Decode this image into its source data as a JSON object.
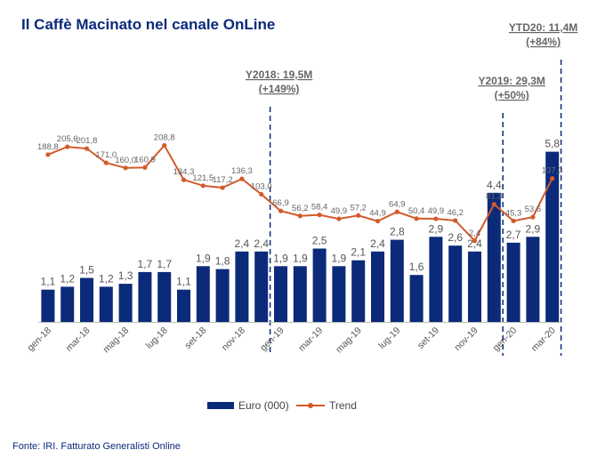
{
  "title": "Il Caffè Macinato nel canale OnLine",
  "source": "Fonte: IRI. Fatturato Generalisti Online",
  "colors": {
    "bars": "#0b2a7a",
    "trend": "#d35a2b",
    "title": "#0b2a7a",
    "annotation_line": "#0b2a7a"
  },
  "chart_data": {
    "type": "bar",
    "categories": [
      "gen-18",
      "feb-18",
      "mar-18",
      "apr-18",
      "mag-18",
      "giu-18",
      "lug-18",
      "ago-18",
      "set-18",
      "ott-18",
      "nov-18",
      "dic-18",
      "gen-19",
      "feb-19",
      "mar-19",
      "apr-19",
      "mag-19",
      "giu-19",
      "lug-19",
      "ago-19",
      "set-19",
      "ott-19",
      "nov-19",
      "dic-19",
      "gen-20",
      "feb-20",
      "mar-20"
    ],
    "x_tick_labels": [
      "gen-18",
      "mar-18",
      "mag-18",
      "lug-18",
      "set-18",
      "nov-18",
      "gen-19",
      "mar-19",
      "mag-19",
      "lug-19",
      "set-19",
      "nov-19",
      "gen-20",
      "mar-20"
    ],
    "series": [
      {
        "name": "Euro (000)",
        "type": "bar",
        "values": [
          1.1,
          1.2,
          1.5,
          1.2,
          1.3,
          1.7,
          1.7,
          1.1,
          1.9,
          1.8,
          2.4,
          2.4,
          1.9,
          1.9,
          2.5,
          1.9,
          2.1,
          2.4,
          2.8,
          1.6,
          2.9,
          2.6,
          2.4,
          4.4,
          2.7,
          2.9,
          5.8
        ],
        "labels": [
          "1,1",
          "1,2",
          "1,5",
          "1,2",
          "1,3",
          "1,7",
          "1,7",
          "1,1",
          "1,9",
          "1,8",
          "2,4",
          "2,4",
          "1,9",
          "1,9",
          "2,5",
          "1,9",
          "2,1",
          "2,4",
          "2,8",
          "1,6",
          "2,9",
          "2,6",
          "2,4",
          "4,4",
          "2,7",
          "2,9",
          "5,8"
        ]
      },
      {
        "name": "Trend",
        "type": "line",
        "values": [
          188.8,
          205.6,
          201.8,
          171.0,
          160.0,
          160.9,
          208.8,
          134.3,
          121.5,
          117.2,
          136.3,
          103.0,
          66.9,
          56.2,
          58.4,
          49.9,
          57.2,
          44.9,
          64.9,
          50.4,
          49.9,
          46.2,
          2.4,
          81.3,
          45.3,
          53.6,
          137.3
        ],
        "labels": [
          "188,8",
          "205,6",
          "201,8",
          "171,0",
          "160,0",
          "160,9",
          "208,8",
          "134,3",
          "121,5",
          "117,2",
          "136,3",
          "103,0",
          "66,9",
          "56,2",
          "58,4",
          "49,9",
          "57,2",
          "44,9",
          "64,9",
          "50,4",
          "49,9",
          "46,2",
          "2,4",
          "81,3",
          "45,3",
          "53,6",
          "137,3"
        ]
      }
    ],
    "annotations": [
      {
        "after_category": "dic-18",
        "line1": "Y2018: 19,5M",
        "line2": "(+149%)"
      },
      {
        "after_category": "dic-19",
        "line1": "Y2019: 29,3M",
        "line2": "(+50%)"
      },
      {
        "after_category": "mar-20",
        "line1": "YTD20: 11,4M",
        "line2": "(+84%)"
      }
    ],
    "legend_position": "bottom",
    "grid": false
  }
}
